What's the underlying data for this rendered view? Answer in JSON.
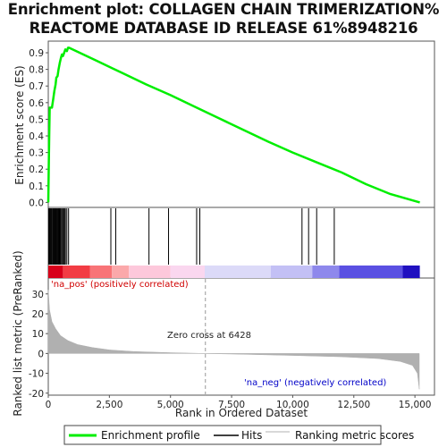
{
  "title_line1": "Enrichment plot: COLLAGEN CHAIN TRIMERIZATION%",
  "title_line2": "REACTOME DATABASE ID RELEASE 61%8948216",
  "chart_data": {
    "type": "line",
    "es_panel": {
      "ylabel": "Enrichment score (ES)",
      "ylim": [
        -0.03,
        0.97
      ],
      "yticks": [
        "0.0",
        "0.1",
        "0.2",
        "0.3",
        "0.4",
        "0.5",
        "0.6",
        "0.7",
        "0.8",
        "0.9"
      ],
      "ytick_values": [
        0.0,
        0.1,
        0.2,
        0.3,
        0.4,
        0.5,
        0.6,
        0.7,
        0.8,
        0.9
      ],
      "series": [
        {
          "name": "Enrichment profile",
          "color": "#00ee00",
          "x": [
            0,
            20,
            40,
            60,
            150,
            200,
            250,
            300,
            330,
            380,
            420,
            470,
            520,
            560,
            600,
            650,
            700,
            760,
            810,
            850,
            2000,
            3000,
            4000,
            5000,
            6000,
            7000,
            8000,
            9000,
            10000,
            11000,
            12000,
            13000,
            14000,
            15200
          ],
          "y": [
            0.0,
            0.2,
            0.42,
            0.57,
            0.57,
            0.62,
            0.67,
            0.71,
            0.75,
            0.76,
            0.8,
            0.84,
            0.87,
            0.89,
            0.88,
            0.9,
            0.92,
            0.91,
            0.93,
            0.93,
            0.85,
            0.78,
            0.71,
            0.645,
            0.575,
            0.505,
            0.435,
            0.365,
            0.3,
            0.24,
            0.18,
            0.11,
            0.05,
            0.0
          ]
        }
      ]
    },
    "hits_panel": {
      "positions": [
        20,
        45,
        70,
        100,
        130,
        160,
        200,
        230,
        260,
        290,
        320,
        350,
        380,
        410,
        440,
        470,
        500,
        540,
        580,
        620,
        660,
        700,
        760,
        830,
        2560,
        2760,
        4120,
        4920,
        6070,
        6200,
        10380,
        10650,
        10980,
        11700
      ],
      "color": "#000000"
    },
    "gradient_bar": {
      "segments": [
        {
          "x0": 0,
          "x1": 600,
          "color": "#d8001a"
        },
        {
          "x0": 600,
          "x1": 1700,
          "color": "#f23c44"
        },
        {
          "x0": 1700,
          "x1": 2600,
          "color": "#f87477"
        },
        {
          "x0": 2600,
          "x1": 3300,
          "color": "#fba8aa"
        },
        {
          "x0": 3300,
          "x1": 5000,
          "color": "#fdc8db"
        },
        {
          "x0": 5000,
          "x1": 6400,
          "color": "#fad7ef"
        },
        {
          "x0": 6400,
          "x1": 9100,
          "color": "#dcdaf8"
        },
        {
          "x0": 9100,
          "x1": 10800,
          "color": "#c3c0f5"
        },
        {
          "x0": 10800,
          "x1": 11900,
          "color": "#8e88ec"
        },
        {
          "x0": 11900,
          "x1": 14500,
          "color": "#5a50e2"
        },
        {
          "x0": 14500,
          "x1": 15200,
          "color": "#2010c0"
        }
      ],
      "label_pos": "'na_pos' (positively correlated)",
      "label_neg": "'na_neg' (negatively correlated)",
      "pos_color": "#d00000",
      "neg_color": "#0000c8"
    },
    "metric_panel": {
      "ylabel": "Ranked list metric (PreRanked)",
      "ylim": [
        -21,
        38
      ],
      "yticks": [
        "-20",
        "-10",
        "0",
        "10",
        "20",
        "30"
      ],
      "ytick_values": [
        -20,
        -10,
        0,
        10,
        20,
        30
      ],
      "x": [
        0,
        50,
        150,
        300,
        500,
        800,
        1200,
        1800,
        2500,
        3500,
        5000,
        6428,
        8000,
        10000,
        12000,
        13500,
        14400,
        14900,
        15100,
        15180
      ],
      "y": [
        32,
        22,
        16,
        12.5,
        9,
        6.5,
        4.5,
        3,
        1.8,
        1,
        0.4,
        0,
        -0.4,
        -1,
        -1.7,
        -2.6,
        -4,
        -6,
        -10,
        -18
      ],
      "color": "#b0b0b0",
      "zero_cross_label": "Zero cross at 6428",
      "zero_cross_x": 6428
    },
    "xaxis": {
      "label": "Rank in Ordered Dataset",
      "xlim": [
        0,
        15800
      ],
      "xticks": [
        "0",
        "2,500",
        "5,000",
        "7,500",
        "10,000",
        "12,500",
        "15,000"
      ],
      "xtick_values": [
        0,
        2500,
        5000,
        7500,
        10000,
        12500,
        15000
      ]
    },
    "legend": {
      "placement": "bottom",
      "items": [
        {
          "label": "Enrichment profile",
          "color": "#00ee00"
        },
        {
          "label": "Hits",
          "color": "#000000"
        },
        {
          "label": "Ranking metric scores",
          "color": "#b0b0b0"
        }
      ]
    }
  }
}
